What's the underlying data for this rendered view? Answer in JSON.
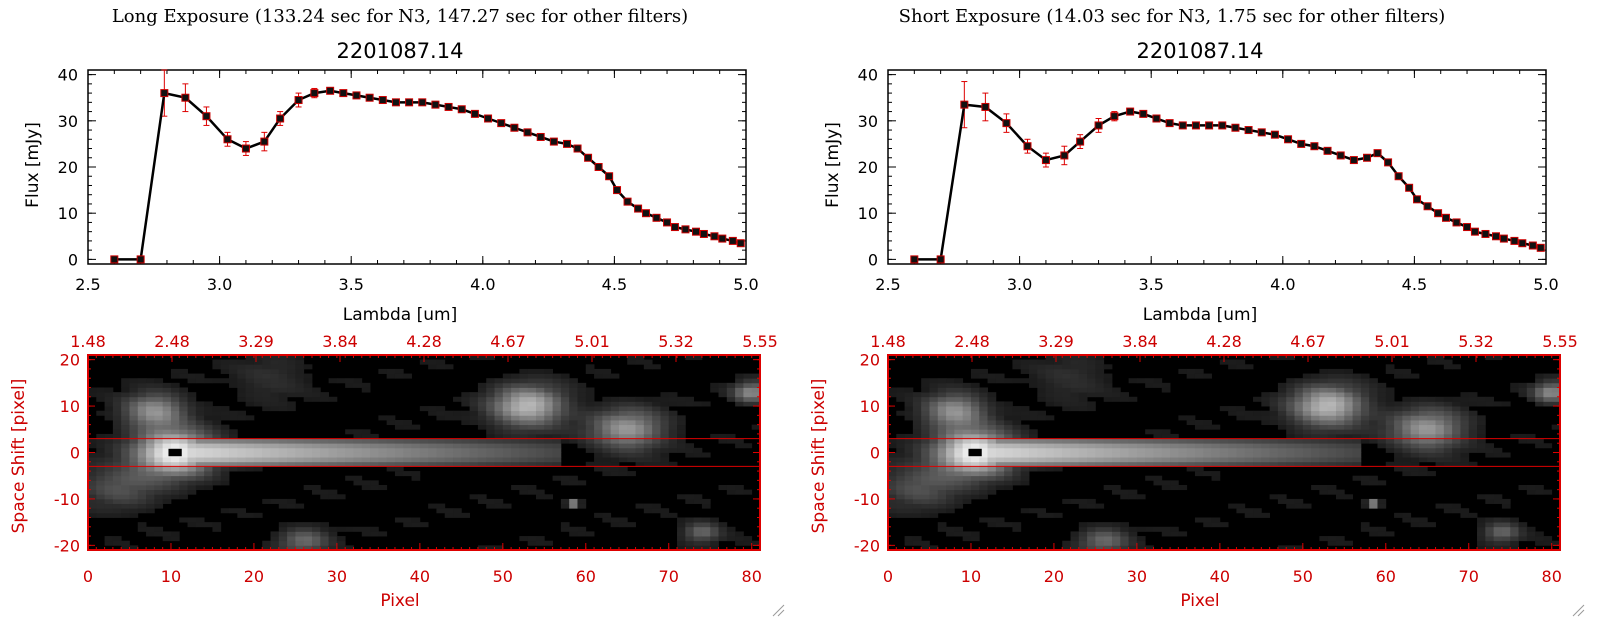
{
  "panels": [
    {
      "title": "Long Exposure (133.24 sec for N3, 147.27 sec for other filters)",
      "chart_data": {
        "type": "line",
        "title": "2201087.14",
        "xlabel": "Lambda [um]",
        "ylabel": "Flux [mJy]",
        "xlim": [
          2.5,
          5.0
        ],
        "ylim": [
          -1,
          41
        ],
        "xticks": [
          "2.5",
          "3.0",
          "3.5",
          "4.0",
          "4.5",
          "5.0"
        ],
        "yticks": [
          "0",
          "10",
          "20",
          "30",
          "40"
        ],
        "x": [
          2.6,
          2.7,
          2.79,
          2.87,
          2.95,
          3.03,
          3.1,
          3.17,
          3.23,
          3.3,
          3.36,
          3.42,
          3.47,
          3.52,
          3.57,
          3.62,
          3.67,
          3.72,
          3.77,
          3.82,
          3.87,
          3.92,
          3.97,
          4.02,
          4.07,
          4.12,
          4.17,
          4.22,
          4.27,
          4.32,
          4.36,
          4.4,
          4.44,
          4.48,
          4.51,
          4.55,
          4.59,
          4.62,
          4.66,
          4.7,
          4.73,
          4.77,
          4.81,
          4.84,
          4.88,
          4.91,
          4.95,
          4.98
        ],
        "y": [
          0,
          0,
          36,
          35,
          31,
          26,
          24,
          25.5,
          30.5,
          34.5,
          36,
          36.5,
          36,
          35.5,
          35,
          34.5,
          34,
          34,
          34,
          33.5,
          33,
          32.5,
          31.5,
          30.5,
          29.5,
          28.5,
          27.5,
          26.5,
          25.5,
          25,
          24,
          22,
          20,
          18,
          15,
          12.5,
          11,
          10,
          9,
          8,
          7,
          6.5,
          6,
          5.5,
          5,
          4.5,
          4,
          3.5
        ],
        "yerr": [
          0,
          0,
          5,
          3,
          2,
          1.5,
          1.5,
          2,
          1.5,
          1.5,
          1,
          0.5,
          0.5,
          0.4,
          0.4,
          0.4,
          0.3,
          0.3,
          0.3,
          0.3,
          0.3,
          0.3,
          0.3,
          0.3,
          0.3,
          0.3,
          0.3,
          0.3,
          0.3,
          0.3,
          0.3,
          0.3,
          0.3,
          0.3,
          0.3,
          0.3,
          0.3,
          0.3,
          0.3,
          0.3,
          0.3,
          0.3,
          0.3,
          0.3,
          0.3,
          0.3,
          0.3,
          0.3
        ]
      },
      "image_data": {
        "type": "heatmap",
        "xlabel": "Pixel",
        "ylabel": "Space Shift [pixel]",
        "xlim": [
          0,
          81
        ],
        "ylim": [
          -21,
          21
        ],
        "xticks": [
          "0",
          "10",
          "20",
          "30",
          "40",
          "50",
          "60",
          "70",
          "80"
        ],
        "yticks": [
          "20",
          "10",
          "0",
          "-10",
          "-20"
        ],
        "top_ticks": [
          "1.48",
          "2.48",
          "3.29",
          "3.84",
          "4.28",
          "4.67",
          "5.01",
          "5.32",
          "5.55"
        ],
        "aperture": [
          -3,
          3
        ],
        "source_center": [
          10.5,
          0
        ],
        "blobs": [
          {
            "x": 10.5,
            "y": 0,
            "r": 3.2,
            "v": 1.0
          },
          {
            "x": 8,
            "y": 9,
            "r": 2.5,
            "v": 0.55
          },
          {
            "x": 53,
            "y": 10,
            "r": 3,
            "v": 0.7
          },
          {
            "x": 65,
            "y": 5,
            "r": 3,
            "v": 0.55
          },
          {
            "x": 80,
            "y": 13,
            "r": 1.5,
            "v": 0.5
          },
          {
            "x": 58.5,
            "y": -11,
            "r": 0.5,
            "v": 0.7
          },
          {
            "x": 26,
            "y": -19,
            "r": 2,
            "v": 0.35
          },
          {
            "x": 74,
            "y": -17,
            "r": 1.5,
            "v": 0.35
          },
          {
            "x": 4,
            "y": -7,
            "r": 3.5,
            "v": 0.25
          },
          {
            "x": 22,
            "y": 16,
            "r": 3,
            "v": 0.12
          }
        ],
        "streak": {
          "y": 0,
          "half_width": 3.2,
          "x_start": 10.5,
          "x_end": 57,
          "v_start": 0.95,
          "v_end": 0.3
        }
      }
    },
    {
      "title": "Short Exposure (14.03 sec for N3, 1.75 sec for other filters)",
      "chart_data": {
        "type": "line",
        "title": "2201087.14",
        "xlabel": "Lambda [um]",
        "ylabel": "Flux [mJy]",
        "xlim": [
          2.5,
          5.0
        ],
        "ylim": [
          -1,
          41
        ],
        "xticks": [
          "2.5",
          "3.0",
          "3.5",
          "4.0",
          "4.5",
          "5.0"
        ],
        "yticks": [
          "0",
          "10",
          "20",
          "30",
          "40"
        ],
        "x": [
          2.6,
          2.7,
          2.79,
          2.87,
          2.95,
          3.03,
          3.1,
          3.17,
          3.23,
          3.3,
          3.36,
          3.42,
          3.47,
          3.52,
          3.57,
          3.62,
          3.67,
          3.72,
          3.77,
          3.82,
          3.87,
          3.92,
          3.97,
          4.02,
          4.07,
          4.12,
          4.17,
          4.22,
          4.27,
          4.32,
          4.36,
          4.4,
          4.44,
          4.48,
          4.51,
          4.55,
          4.59,
          4.62,
          4.66,
          4.7,
          4.73,
          4.77,
          4.81,
          4.84,
          4.88,
          4.91,
          4.95,
          4.98
        ],
        "y": [
          0,
          0,
          33.5,
          33,
          29.5,
          24.5,
          21.5,
          22.5,
          25.5,
          29,
          31,
          32,
          31.5,
          30.5,
          29.5,
          29,
          29,
          29,
          29,
          28.5,
          28,
          27.5,
          27,
          26,
          25,
          24.5,
          23.5,
          22.5,
          21.5,
          22,
          23,
          21,
          18,
          15.5,
          13,
          11.5,
          10,
          9,
          8,
          7,
          6,
          5.5,
          5,
          4.5,
          4,
          3.5,
          3,
          2.5
        ],
        "yerr": [
          0,
          0,
          5,
          3,
          2,
          1.5,
          1.5,
          2,
          1.5,
          1.5,
          1,
          0.5,
          0.5,
          0.4,
          0.4,
          0.4,
          0.3,
          0.3,
          0.3,
          0.3,
          0.3,
          0.3,
          0.3,
          0.3,
          0.3,
          0.3,
          0.3,
          0.3,
          0.3,
          0.3,
          0.3,
          0.3,
          0.3,
          0.3,
          0.3,
          0.3,
          0.3,
          0.3,
          0.3,
          0.3,
          0.3,
          0.3,
          0.3,
          0.3,
          0.3,
          0.3,
          0.3,
          0.3
        ]
      },
      "image_data": {
        "type": "heatmap",
        "xlabel": "Pixel",
        "ylabel": "Space Shift [pixel]",
        "xlim": [
          0,
          81
        ],
        "ylim": [
          -21,
          21
        ],
        "xticks": [
          "0",
          "10",
          "20",
          "30",
          "40",
          "50",
          "60",
          "70",
          "80"
        ],
        "yticks": [
          "20",
          "10",
          "0",
          "-10",
          "-20"
        ],
        "top_ticks": [
          "1.48",
          "2.48",
          "3.29",
          "3.84",
          "4.28",
          "4.67",
          "5.01",
          "5.32",
          "5.55"
        ],
        "aperture": [
          -3,
          3
        ],
        "source_center": [
          10.5,
          0
        ],
        "blobs": [
          {
            "x": 10.5,
            "y": 0,
            "r": 3.2,
            "v": 1.0
          },
          {
            "x": 8,
            "y": 9,
            "r": 2.5,
            "v": 0.55
          },
          {
            "x": 53,
            "y": 10,
            "r": 3,
            "v": 0.7
          },
          {
            "x": 65,
            "y": 5,
            "r": 3,
            "v": 0.55
          },
          {
            "x": 80,
            "y": 13,
            "r": 1.5,
            "v": 0.5
          },
          {
            "x": 58.5,
            "y": -11,
            "r": 0.5,
            "v": 0.7
          },
          {
            "x": 26,
            "y": -19,
            "r": 2,
            "v": 0.35
          },
          {
            "x": 74,
            "y": -17,
            "r": 1.5,
            "v": 0.35
          },
          {
            "x": 4,
            "y": -7,
            "r": 3.5,
            "v": 0.25
          },
          {
            "x": 22,
            "y": 16,
            "r": 3,
            "v": 0.12
          }
        ],
        "streak": {
          "y": 0,
          "half_width": 3.2,
          "x_start": 10.5,
          "x_end": 57,
          "v_start": 0.95,
          "v_end": 0.3
        }
      }
    }
  ]
}
